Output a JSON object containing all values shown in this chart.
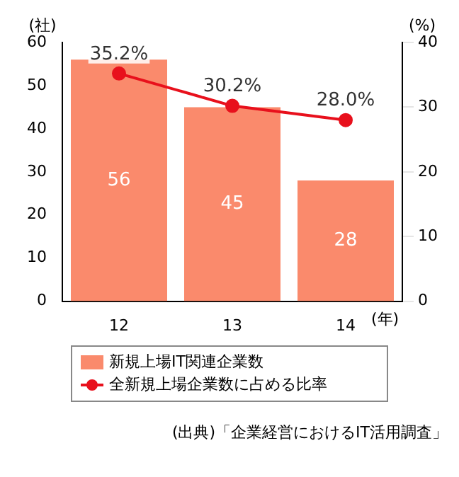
{
  "chart_data": {
    "type": "bar",
    "categories": [
      "12",
      "13",
      "14"
    ],
    "series": [
      {
        "name": "新規上場IT関連企業数",
        "color": "#fa8a6c",
        "values": [
          56,
          45,
          28
        ],
        "value_labels": [
          "56",
          "45",
          "28"
        ]
      },
      {
        "name": "全新規上場企業数に占める比率",
        "type": "line",
        "axis": "y2",
        "color": "#e8101c",
        "values": [
          35.2,
          30.2,
          28.0
        ],
        "value_labels": [
          "35.2%",
          "30.2%",
          "28.0%"
        ]
      }
    ],
    "ylabel": "(社)",
    "y2label": "(%)",
    "xlabel": "(年)",
    "ylim": [
      0,
      60
    ],
    "yticks": [
      0,
      10,
      20,
      30,
      40,
      50,
      60
    ],
    "y2lim": [
      0,
      40
    ],
    "y2ticks": [
      0,
      10,
      20,
      30,
      40
    ],
    "marker": "circle",
    "grid": false,
    "legend": "bottom",
    "annotations": [
      "(出典)「企業経営におけるIT活用調査」"
    ]
  }
}
